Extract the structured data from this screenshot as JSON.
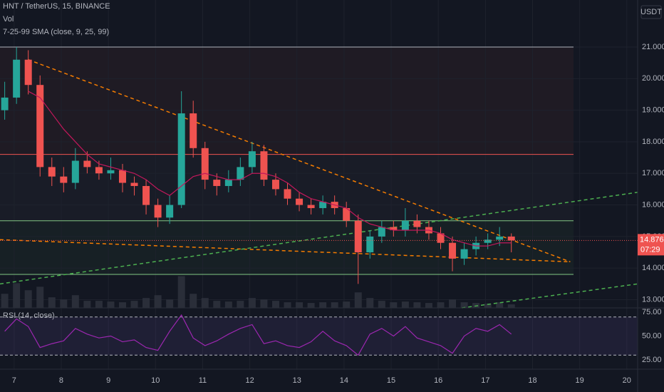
{
  "chart_data": {
    "type": "candlestick",
    "title": "HNT / TetherUS, 15, BINANCE",
    "indicators": [
      "Vol",
      "7-25-99 SMA (close, 9, 25, 99)"
    ],
    "currency": "USDT",
    "up_color": "#26a69a",
    "down_color": "#ef5350",
    "sma_color": "#c2185b",
    "volume_color": "#2a2e39",
    "x": [
      6.8,
      7.05,
      7.3,
      7.55,
      7.8,
      8.05,
      8.3,
      8.55,
      8.8,
      9.05,
      9.3,
      9.55,
      9.8,
      10.05,
      10.3,
      10.55,
      10.8,
      11.05,
      11.3,
      11.55,
      11.8,
      12.05,
      12.3,
      12.55,
      12.8,
      13.05,
      13.3,
      13.55,
      13.8,
      14.05,
      14.3,
      14.55,
      14.8,
      15.05,
      15.3,
      15.55,
      15.8,
      16.05,
      16.3,
      16.55,
      16.8,
      17.05,
      17.3,
      17.55
    ],
    "open": [
      19.0,
      19.4,
      20.6,
      19.8,
      17.2,
      16.9,
      16.7,
      17.4,
      17.2,
      17.0,
      17.1,
      16.7,
      16.6,
      16.0,
      15.6,
      16.0,
      18.9,
      17.8,
      16.8,
      16.6,
      16.8,
      17.2,
      17.7,
      16.8,
      16.5,
      16.2,
      16.0,
      15.9,
      16.1,
      15.9,
      15.5,
      14.5,
      15.0,
      15.3,
      15.2,
      15.5,
      15.3,
      15.1,
      14.8,
      14.3,
      14.6,
      14.8,
      14.9,
      15.0
    ],
    "high": [
      19.9,
      21.0,
      20.9,
      20.1,
      17.5,
      17.2,
      17.8,
      17.7,
      17.4,
      17.5,
      17.3,
      16.9,
      16.8,
      16.2,
      16.3,
      19.6,
      19.3,
      18.0,
      17.0,
      17.1,
      17.5,
      18.0,
      17.9,
      17.0,
      16.7,
      16.4,
      16.2,
      16.3,
      16.3,
      16.1,
      15.7,
      15.2,
      15.5,
      15.5,
      15.9,
      15.7,
      15.5,
      15.3,
      15.0,
      14.8,
      15.0,
      15.1,
      15.3,
      15.1
    ],
    "low": [
      18.7,
      19.2,
      19.5,
      16.9,
      16.6,
      16.4,
      16.5,
      17.0,
      16.8,
      16.8,
      16.4,
      16.3,
      15.7,
      15.3,
      15.4,
      15.9,
      17.5,
      16.5,
      16.3,
      16.4,
      16.6,
      17.0,
      16.6,
      16.3,
      16.0,
      15.8,
      15.7,
      15.7,
      15.7,
      15.3,
      13.5,
      14.3,
      14.8,
      15.0,
      15.0,
      15.1,
      14.9,
      14.6,
      13.9,
      14.1,
      14.4,
      14.6,
      14.7,
      14.5
    ],
    "close": [
      19.4,
      20.6,
      19.8,
      17.2,
      16.9,
      16.7,
      17.4,
      17.2,
      17.0,
      17.1,
      16.7,
      16.6,
      16.0,
      15.6,
      16.0,
      18.9,
      17.8,
      16.8,
      16.6,
      16.8,
      17.2,
      17.7,
      16.8,
      16.5,
      16.2,
      16.0,
      15.9,
      16.1,
      15.9,
      15.5,
      14.5,
      15.0,
      15.3,
      15.2,
      15.5,
      15.3,
      15.1,
      14.8,
      14.3,
      14.6,
      14.8,
      14.9,
      15.0,
      14.876
    ],
    "volume": [
      20,
      35,
      25,
      30,
      15,
      12,
      18,
      10,
      10,
      9,
      8,
      10,
      14,
      18,
      12,
      45,
      20,
      14,
      10,
      9,
      10,
      14,
      12,
      10,
      8,
      8,
      7,
      8,
      8,
      9,
      22,
      14,
      10,
      8,
      9,
      8,
      7,
      8,
      12,
      8,
      7,
      6,
      8,
      5
    ],
    "vlim": [
      0,
      100
    ],
    "sma": [
      null,
      null,
      19.6,
      19.4,
      18.9,
      18.4,
      18.0,
      17.6,
      17.3,
      17.2,
      17.1,
      17.0,
      16.8,
      16.5,
      16.3,
      16.6,
      16.9,
      17.0,
      16.9,
      16.8,
      16.8,
      17.0,
      17.0,
      16.9,
      16.7,
      16.4,
      16.2,
      16.1,
      16.0,
      15.9,
      15.6,
      15.4,
      15.3,
      15.2,
      15.2,
      15.2,
      15.2,
      15.1,
      14.9,
      14.8,
      14.7,
      14.7,
      14.8,
      14.8
    ],
    "xlim": [
      6.7,
      20.23
    ],
    "xticks": [
      7,
      8,
      9,
      10,
      11,
      12,
      13,
      14,
      15,
      16,
      17,
      18,
      19,
      20
    ],
    "ylim": [
      12.74,
      22.49
    ],
    "yticks": [
      {
        "value": 13,
        "label": "13.000"
      },
      {
        "value": 14,
        "label": "14.000"
      },
      {
        "value": 15,
        "label": "15.000"
      },
      {
        "value": 16,
        "label": "16.000"
      },
      {
        "value": 17,
        "label": "17.000"
      },
      {
        "value": 18,
        "label": "18.000"
      },
      {
        "value": 19,
        "label": "19.000"
      },
      {
        "value": 20,
        "label": "20.000"
      },
      {
        "value": 21,
        "label": "21.000"
      }
    ],
    "levels": [
      {
        "value": 21.0,
        "color": "#b2b5be",
        "fill": "rgba(120,60,60,0.12)"
      },
      {
        "value": 17.6,
        "color": "#ef5350",
        "fill": "rgba(80,80,90,0.10)"
      },
      {
        "value": 15.5,
        "color": "#81c784",
        "fill": "rgba(60,120,70,0.10)"
      },
      {
        "value": 13.8,
        "color": "#81c784",
        "fill": "rgba(0,0,0,0)"
      }
    ],
    "trendlines": [
      {
        "x": [
          7.3,
          18.8
        ],
        "y": [
          20.6,
          14.2
        ],
        "color": "#f57c00"
      },
      {
        "x": [
          6.7,
          18.8
        ],
        "y": [
          14.9,
          14.2
        ],
        "color": "#f57c00"
      },
      {
        "x": [
          6.7,
          20.23
        ],
        "y": [
          13.5,
          16.4
        ],
        "color": "#4caf50"
      },
      {
        "x": [
          16.5,
          20.23
        ],
        "y": [
          12.74,
          13.5
        ],
        "color": "#4caf50"
      }
    ],
    "last_price": 14.876,
    "countdown": "07:29",
    "rsi": {
      "title": "RSI (14, close)",
      "color": "#9c27b0",
      "values": [
        55,
        68,
        60,
        38,
        42,
        45,
        58,
        52,
        48,
        50,
        44,
        46,
        38,
        35,
        55,
        72,
        48,
        40,
        45,
        52,
        58,
        62,
        42,
        45,
        40,
        38,
        44,
        55,
        45,
        40,
        30,
        52,
        58,
        50,
        60,
        48,
        44,
        40,
        32,
        50,
        58,
        55,
        62,
        52
      ],
      "ylim": [
        15.3,
        79.5
      ],
      "yticks": [
        {
          "value": 25,
          "label": "25.00"
        },
        {
          "value": 50,
          "label": "50.00"
        },
        {
          "value": 75,
          "label": "75.00"
        }
      ],
      "bands": [
        30,
        70
      ]
    }
  }
}
